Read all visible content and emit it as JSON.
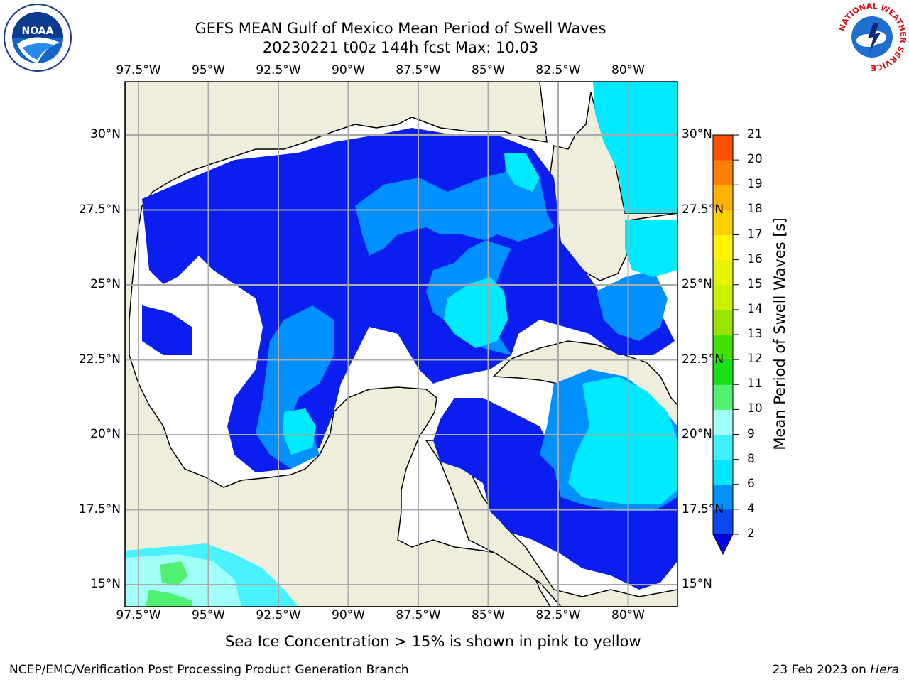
{
  "title": {
    "line1": "GEFS MEAN Gulf of Mexico Mean Period of Swell Waves",
    "line2": "20230221 t00z 144h fcst   Max: 10.03"
  },
  "logos": {
    "left": "noaa-logo",
    "right": "nws-logo",
    "nws_ring_text": "NATIONAL WEATHER SERVICE"
  },
  "map": {
    "lon_labels": [
      "97.5°W",
      "95°W",
      "92.5°W",
      "90°W",
      "87.5°W",
      "85°W",
      "82.5°W",
      "80°W"
    ],
    "lat_labels": [
      "30°N",
      "27.5°N",
      "25°N",
      "22.5°N",
      "20°N",
      "17.5°N",
      "15°N"
    ],
    "land_color": "#efeedc",
    "ocean_no_data_color": "#ffffff"
  },
  "colorbar": {
    "label": "Mean Period of Swell Waves [s]",
    "ticks": [
      "2",
      "4",
      "6",
      "8",
      "9",
      "10",
      "11",
      "12",
      "13",
      "14",
      "15",
      "16",
      "17",
      "18",
      "19",
      "20",
      "21"
    ],
    "colors": [
      "#0a48f2",
      "#0090ff",
      "#00e8ff",
      "#40f0ff",
      "#a0fff8",
      "#50f070",
      "#18e018",
      "#40e000",
      "#98e400",
      "#c8f000",
      "#e6f400",
      "#fff500",
      "#ffd000",
      "#ffb000",
      "#ff8000",
      "#ff5000",
      "#ff2000",
      "#ff0000"
    ],
    "under_color": "#0000f0"
  },
  "footnote": "Sea Ice Concentration > 15% is shown in pink to yellow",
  "credit": "NCEP/EMC/Verification Post Processing Product Generation Branch",
  "date_stamp": {
    "date": "23 Feb 2023 on ",
    "machine": "Hera"
  }
}
